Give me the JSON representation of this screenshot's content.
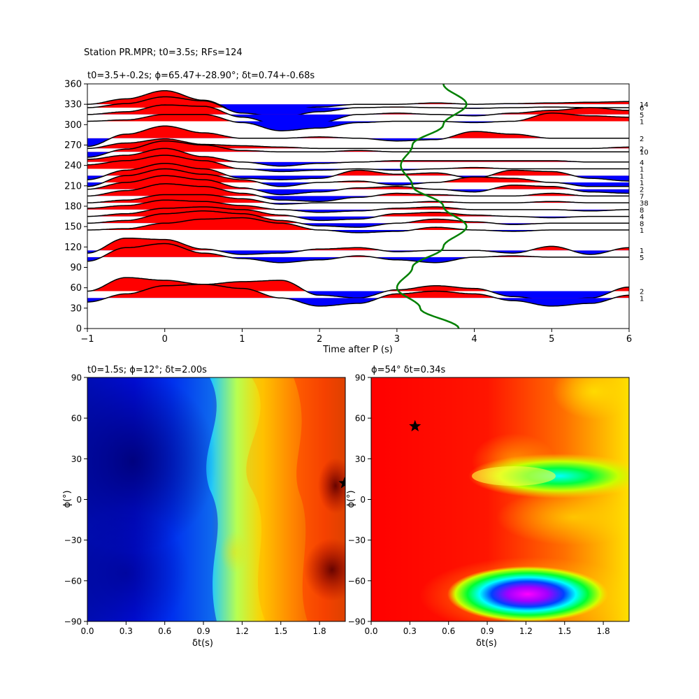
{
  "figure": {
    "suptitle": "Station PR.MPR; t0=3.5s; RFs=124"
  },
  "chart_data": [
    {
      "type": "line",
      "title": "t0=3.5+-0.2s; ϕ=65.47+-28.90°; δt=0.74+-0.68s",
      "xlabel": "Time after P (s)",
      "ylabel": "",
      "xlim": [
        -1,
        6
      ],
      "ylim": [
        0,
        360
      ],
      "xticks": [
        "−1",
        "0",
        "1",
        "2",
        "3",
        "4",
        "5",
        "6"
      ],
      "yticks": [
        "0",
        "30",
        "60",
        "90",
        "120",
        "150",
        "180",
        "210",
        "240",
        "270",
        "300",
        "330",
        "360"
      ],
      "positive_fill": "#ff0000",
      "negative_fill": "#0000ff",
      "t0_curve_color": "#008000",
      "traces": [
        {
          "baz": 330,
          "count": "14",
          "amp": [
            0.0,
            0.4,
            1.0,
            0.3,
            -0.6,
            -0.5,
            -0.2,
            0.0,
            0.0,
            0.1,
            0.0,
            0.05,
            0.1,
            0.15,
            0.2
          ]
        },
        {
          "baz": 325,
          "count": "6",
          "amp": [
            0.0,
            0.3,
            0.8,
            0.5,
            -0.4,
            -0.7,
            -0.3,
            0.0,
            0.05,
            0.0,
            -0.05,
            0.0,
            0.05,
            0.0,
            0.0
          ]
        },
        {
          "baz": 315,
          "count": "5",
          "amp": [
            0.0,
            0.2,
            0.7,
            0.6,
            -0.2,
            -0.8,
            -0.6,
            0.0,
            0.1,
            0.0,
            -0.1,
            0.1,
            0.3,
            0.5,
            0.3
          ]
        },
        {
          "baz": 305,
          "count": "1",
          "amp": [
            0.0,
            0.1,
            0.5,
            0.5,
            -0.1,
            -0.7,
            -0.5,
            -0.1,
            0.0,
            0.0,
            -0.1,
            0.0,
            0.6,
            0.4,
            0.3
          ]
        },
        {
          "baz": 280,
          "count": "2",
          "amp": [
            -0.6,
            0.3,
            0.9,
            0.4,
            0.0,
            0.0,
            0.1,
            0.0,
            -0.2,
            -0.1,
            0.5,
            0.3,
            0.0,
            0.0,
            0.0
          ]
        },
        {
          "baz": 265,
          "count": "2",
          "amp": [
            0.0,
            0.4,
            0.7,
            0.3,
            0.2,
            0.1,
            0.0,
            0.0,
            0.0,
            0.0,
            0.0,
            0.0,
            0.0,
            0.0,
            0.1
          ]
        },
        {
          "baz": 260,
          "count": "10",
          "amp": [
            -0.4,
            0.2,
            0.8,
            0.5,
            0.1,
            0.0,
            0.0,
            0.1,
            0.0,
            0.0,
            0.0,
            0.0,
            0.0,
            0.0,
            0.0
          ]
        },
        {
          "baz": 245,
          "count": "4",
          "amp": [
            0.2,
            0.5,
            1.0,
            0.4,
            0.0,
            -0.3,
            -0.1,
            0.0,
            0.1,
            0.1,
            0.1,
            0.1,
            0.1,
            0.0,
            0.0
          ]
        },
        {
          "baz": 235,
          "count": "1",
          "amp": [
            0.3,
            0.6,
            1.0,
            0.6,
            0.0,
            -0.2,
            -0.1,
            0.0,
            -0.1,
            0.0,
            0.1,
            0.0,
            0.0,
            0.0,
            0.0
          ]
        },
        {
          "baz": 225,
          "count": "1",
          "amp": [
            -0.3,
            0.4,
            0.9,
            0.5,
            -0.2,
            -0.3,
            -0.2,
            0.4,
            0.1,
            0.2,
            -0.2,
            0.4,
            0.3,
            -0.2,
            -0.4
          ]
        },
        {
          "baz": 215,
          "count": "1",
          "amp": [
            -0.3,
            0.5,
            1.0,
            0.6,
            0.2,
            -0.3,
            0.0,
            0.1,
            -0.2,
            0.0,
            0.4,
            0.3,
            0.0,
            -0.3,
            -0.3
          ]
        },
        {
          "baz": 205,
          "count": "2",
          "amp": [
            0.0,
            0.5,
            1.0,
            0.7,
            0.1,
            -0.4,
            -0.2,
            0.1,
            0.2,
            0.0,
            -0.2,
            0.3,
            0.2,
            -0.2,
            -0.3
          ]
        },
        {
          "baz": 195,
          "count": "7",
          "amp": [
            0.0,
            0.4,
            0.9,
            0.7,
            0.2,
            -0.3,
            -0.4,
            -0.1,
            0.2,
            0.1,
            0.0,
            0.0,
            0.2,
            0.0,
            0.0
          ]
        },
        {
          "baz": 185,
          "count": "38",
          "amp": [
            0.0,
            0.2,
            0.6,
            0.6,
            0.3,
            -0.1,
            0.0,
            0.0,
            0.0,
            0.1,
            0.0,
            0.0,
            0.1,
            0.0,
            0.0
          ]
        },
        {
          "baz": 175,
          "count": "8",
          "amp": [
            0.1,
            0.3,
            0.7,
            0.6,
            0.3,
            0.0,
            -0.2,
            -0.1,
            0.1,
            0.2,
            0.0,
            0.0,
            0.0,
            -0.1,
            0.0
          ]
        },
        {
          "baz": 165,
          "count": "4",
          "amp": [
            0.0,
            0.2,
            0.6,
            0.7,
            0.5,
            0.1,
            -0.3,
            -0.2,
            0.2,
            0.3,
            0.1,
            0.0,
            -0.1,
            0.0,
            0.0
          ]
        },
        {
          "baz": 155,
          "count": "8",
          "amp": [
            0.0,
            0.2,
            0.7,
            0.9,
            0.7,
            0.2,
            -0.2,
            -0.3,
            0.0,
            0.3,
            0.1,
            -0.1,
            0.0,
            0.0,
            0.0
          ]
        },
        {
          "baz": 145,
          "count": "1",
          "amp": [
            0.0,
            0.1,
            0.5,
            0.8,
            0.9,
            0.5,
            0.0,
            -0.2,
            -0.1,
            0.2,
            0.0,
            -0.1,
            0.0,
            0.0,
            0.0
          ]
        },
        {
          "baz": 115,
          "count": "1",
          "amp": [
            -0.2,
            0.9,
            0.8,
            0.1,
            -0.3,
            -0.2,
            0.1,
            0.2,
            -0.1,
            0.0,
            0.0,
            -0.2,
            0.3,
            -0.3,
            0.2
          ]
        },
        {
          "baz": 105,
          "count": "5",
          "amp": [
            -0.3,
            0.7,
            1.0,
            0.3,
            -0.1,
            -0.4,
            -0.2,
            0.1,
            -0.2,
            -0.4,
            0.0,
            0.1,
            0.0,
            0.0,
            0.0
          ]
        },
        {
          "baz": 55,
          "count": "2",
          "amp": [
            0.0,
            1.0,
            0.8,
            0.5,
            0.7,
            0.8,
            -0.3,
            -0.5,
            0.1,
            0.4,
            0.2,
            -0.4,
            -0.7,
            -0.5,
            0.3
          ]
        },
        {
          "baz": 45,
          "count": "1",
          "amp": [
            -0.3,
            0.3,
            0.9,
            1.0,
            0.7,
            0.0,
            -0.6,
            -0.4,
            0.3,
            0.5,
            0.3,
            -0.2,
            -0.6,
            -0.4,
            0.2
          ]
        }
      ],
      "t0_curve": {
        "baz": [
          0,
          30,
          60,
          90,
          120,
          150,
          180,
          210,
          240,
          270,
          300,
          330,
          360
        ],
        "time": [
          3.8,
          3.3,
          3.0,
          3.2,
          3.6,
          3.9,
          3.6,
          3.2,
          3.05,
          3.2,
          3.6,
          3.9,
          3.6
        ]
      }
    },
    {
      "type": "heatmap",
      "title": "t0=1.5s; ϕ=12°; δt=2.00s",
      "xlabel": "δt(s)",
      "ylabel": "ϕ(°)",
      "xlim": [
        0.0,
        2.0
      ],
      "ylim": [
        -90,
        90
      ],
      "xticks": [
        "0.0",
        "0.3",
        "0.6",
        "0.9",
        "1.2",
        "1.5",
        "1.8"
      ],
      "yticks": [
        "−90",
        "−60",
        "−30",
        "0",
        "30",
        "60",
        "90"
      ],
      "colormap": "jet",
      "best": {
        "dt": 2.0,
        "phi": 12
      },
      "marker": "black-star"
    },
    {
      "type": "heatmap",
      "title": "ϕ=54° δt=0.34s",
      "xlabel": "δt(s)",
      "ylabel": "ϕ(°)",
      "xlim": [
        0.0,
        2.0
      ],
      "ylim": [
        -90,
        90
      ],
      "xticks": [
        "0.0",
        "0.3",
        "0.6",
        "0.9",
        "1.2",
        "1.5",
        "1.8"
      ],
      "yticks": [
        "−90",
        "−60",
        "−30",
        "0",
        "30",
        "60",
        "90"
      ],
      "colormap": "hsv",
      "best": {
        "dt": 0.34,
        "phi": 54
      },
      "marker": "black-star"
    }
  ]
}
